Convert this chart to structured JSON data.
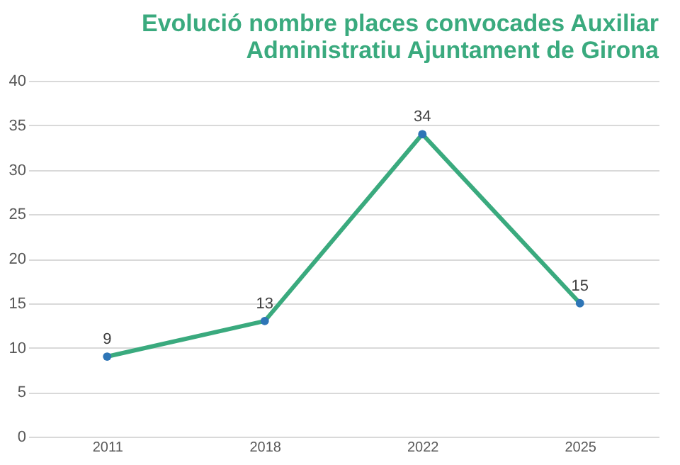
{
  "chart_data": {
    "type": "line",
    "title": "Evolució nombre places convocades Auxiliar\nAdministratiu Ajuntament de Girona",
    "categories": [
      "2011",
      "2018",
      "2022",
      "2025"
    ],
    "series": [
      {
        "color": "#3aaa7e",
        "values": [
          9,
          13,
          34,
          15
        ]
      }
    ],
    "ylim": [
      0,
      40
    ],
    "yticks": [
      0,
      5,
      10,
      15,
      20,
      25,
      30,
      35,
      40
    ],
    "grid": "y",
    "marker": "circle",
    "line_style": "solid",
    "data_labels": true,
    "legend": false
  }
}
